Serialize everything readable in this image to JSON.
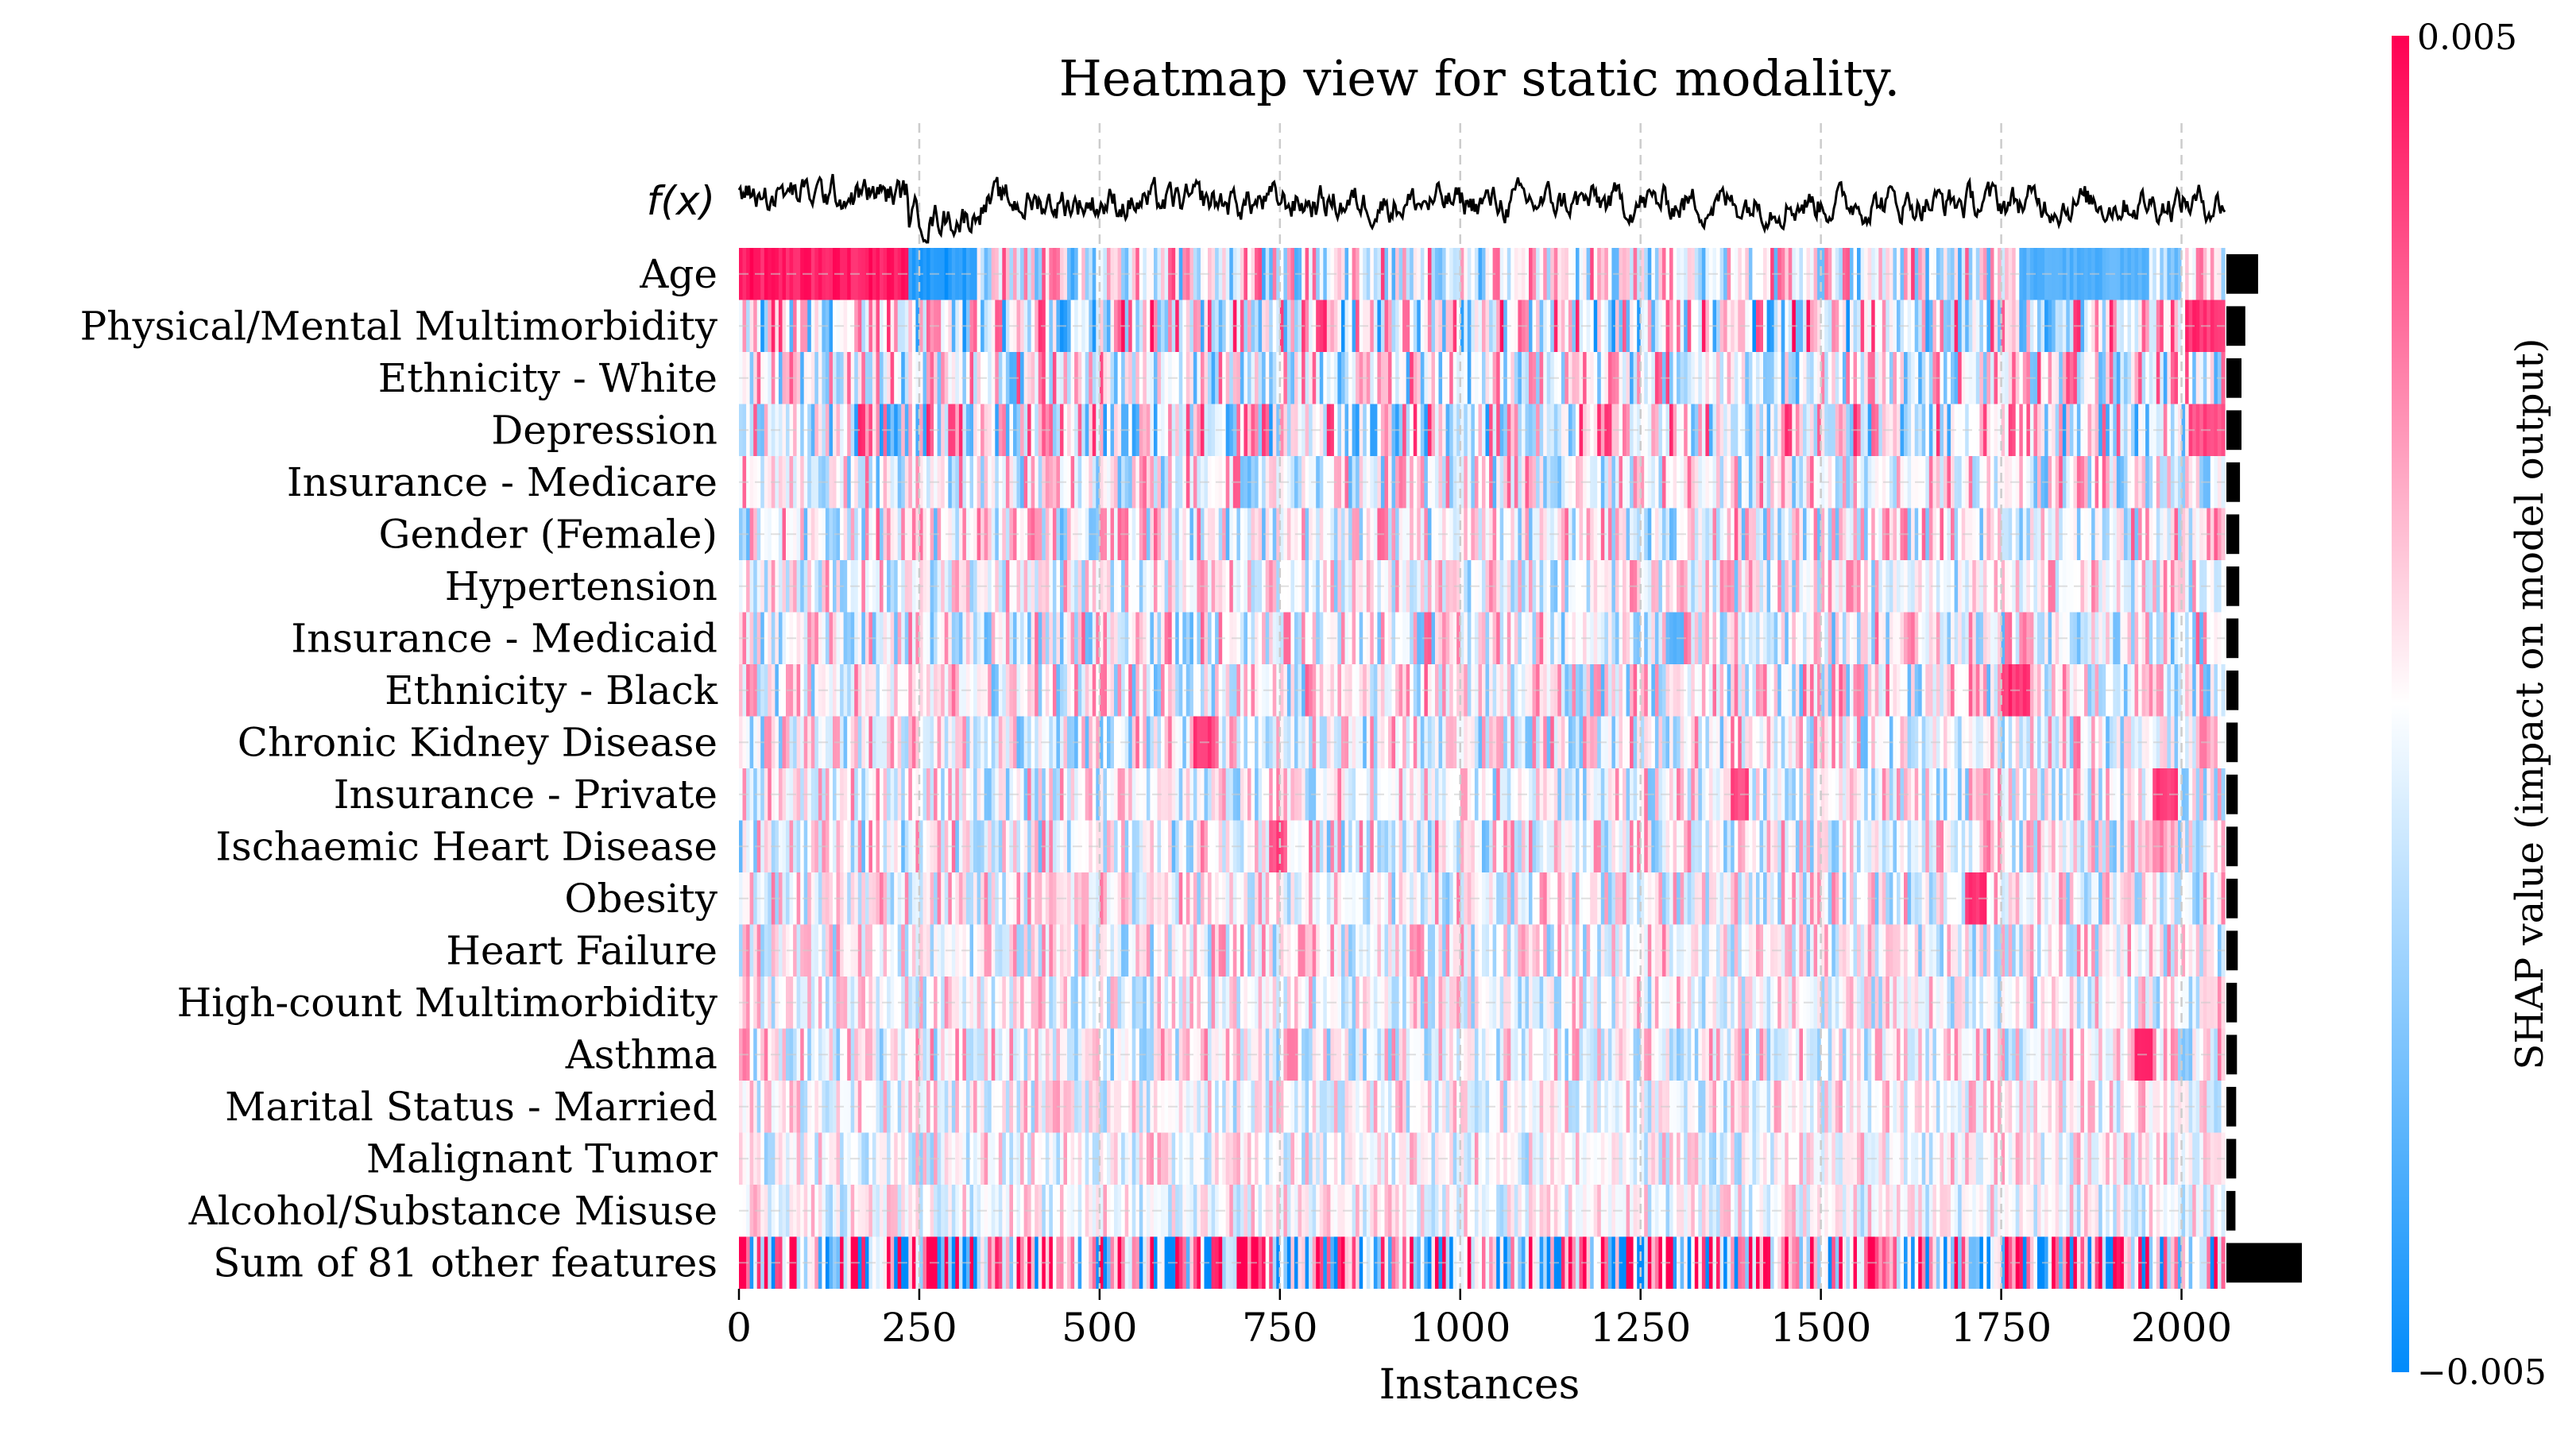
{
  "chart_data": {
    "type": "heatmap",
    "title": "Heatmap view for static modality.",
    "xlabel": "Instances",
    "ylabel": "",
    "fx_label": "f(x)",
    "n_instances": 2060,
    "xlim": [
      0,
      2060
    ],
    "x_ticks": [
      0,
      250,
      500,
      750,
      1000,
      1250,
      1500,
      1750,
      2000
    ],
    "x_tick_labels": [
      "0",
      "250",
      "500",
      "750",
      "1000",
      "1250",
      "1500",
      "1750",
      "2000"
    ],
    "grid": true,
    "features": [
      "Age",
      "Physical/Mental Multimorbidity",
      "Ethnicity - White",
      "Depression",
      "Insurance - Medicare",
      "Gender (Female)",
      "Hypertension",
      "Insurance - Medicaid",
      "Ethnicity - Black",
      "Chronic Kidney Disease",
      "Insurance - Private",
      "Ischaemic Heart Disease",
      "Obesity",
      "Heart Failure",
      "High-count Multimorbidity",
      "Asthma",
      "Marital Status - Married",
      "Malignant Tumor",
      "Alcohol/Substance Misuse",
      "Sum of 81 other features"
    ],
    "mean_abs_shap_relative": [
      0.042,
      0.025,
      0.02,
      0.02,
      0.018,
      0.017,
      0.017,
      0.016,
      0.016,
      0.015,
      0.015,
      0.015,
      0.015,
      0.015,
      0.014,
      0.014,
      0.013,
      0.013,
      0.012,
      0.1
    ],
    "colorbar": {
      "label": "SHAP value (impact on model output)",
      "vmin": -0.005,
      "vmax": 0.005,
      "vmin_label": "−0.005",
      "vmax_label": "0.005"
    },
    "colors": {
      "negative": "#008bfb",
      "positive": "#ff0052",
      "neutral": "#ffffff",
      "importance_bar": "#000000",
      "fx_line": "#000000",
      "grid": "#cccccc"
    },
    "salient_blocks": [
      {
        "feature": "Age",
        "from": 0,
        "to": 235,
        "sign": "positive",
        "strength": 1.0
      },
      {
        "feature": "Age",
        "from": 235,
        "to": 330,
        "sign": "negative",
        "strength": 1.0
      },
      {
        "feature": "Age",
        "from": 1775,
        "to": 1955,
        "sign": "negative",
        "strength": 0.75
      },
      {
        "feature": "Physical/Mental Multimorbidity",
        "from": 2005,
        "to": 2060,
        "sign": "positive",
        "strength": 0.9
      },
      {
        "feature": "Depression",
        "from": 2010,
        "to": 2060,
        "sign": "positive",
        "strength": 0.8
      },
      {
        "feature": "Ethnicity - Black",
        "from": 1750,
        "to": 1790,
        "sign": "positive",
        "strength": 0.9
      },
      {
        "feature": "Chronic Kidney Disease",
        "from": 630,
        "to": 660,
        "sign": "positive",
        "strength": 0.9
      },
      {
        "feature": "Insurance - Private",
        "from": 1375,
        "to": 1400,
        "sign": "positive",
        "strength": 0.8
      },
      {
        "feature": "Insurance - Private",
        "from": 1960,
        "to": 1995,
        "sign": "positive",
        "strength": 0.9
      },
      {
        "feature": "Ischaemic Heart Disease",
        "from": 735,
        "to": 760,
        "sign": "positive",
        "strength": 0.8
      },
      {
        "feature": "Obesity",
        "from": 1700,
        "to": 1730,
        "sign": "positive",
        "strength": 1.0
      },
      {
        "feature": "Asthma",
        "from": 1935,
        "to": 1960,
        "sign": "positive",
        "strength": 0.9
      },
      {
        "feature": "Insurance - Medicaid",
        "from": 1290,
        "to": 1310,
        "sign": "negative",
        "strength": 0.7
      }
    ],
    "band_strength": [
      0.35,
      0.45,
      0.35,
      0.4,
      0.3,
      0.3,
      0.25,
      0.3,
      0.3,
      0.28,
      0.25,
      0.28,
      0.25,
      0.25,
      0.22,
      0.25,
      0.2,
      0.2,
      0.18,
      0.8
    ]
  }
}
